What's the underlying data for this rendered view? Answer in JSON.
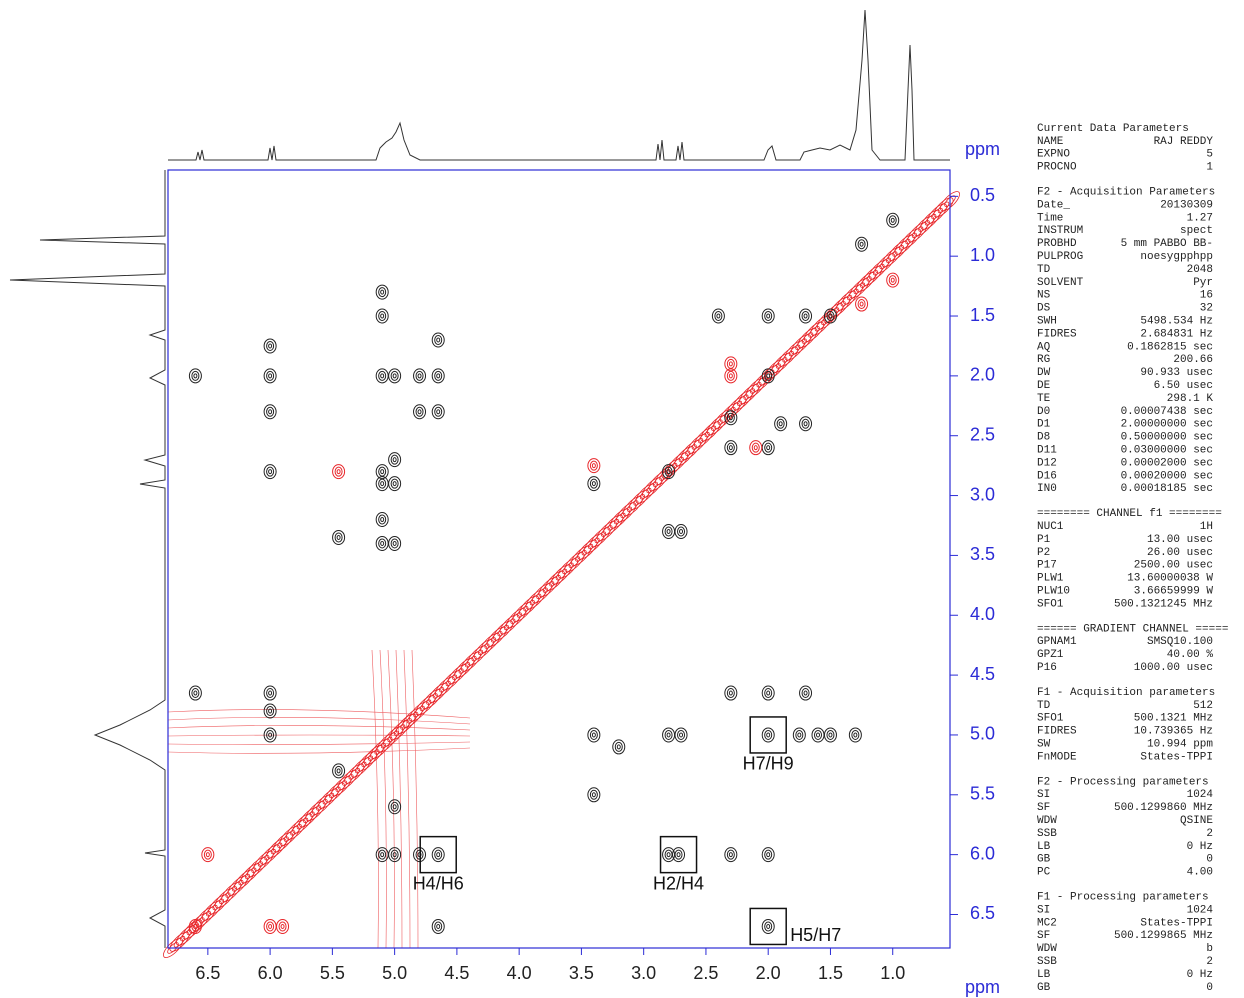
{
  "chart_data": {
    "type": "contour",
    "x_label": "ppm",
    "y_label": "ppm",
    "xlim": [
      6.82,
      0.54
    ],
    "ylim": [
      0.28,
      6.78
    ],
    "xticks": [
      6.5,
      {
        "value": 6,
        "label": "6.0"
      },
      5.5,
      {
        "value": 5,
        "label": "5.0"
      },
      4.5,
      {
        "value": 4,
        "label": "4.0"
      },
      3.5,
      {
        "value": 3,
        "label": "3.0"
      },
      2.5,
      {
        "value": 2,
        "label": "2.0"
      },
      1.5,
      {
        "value": 1,
        "label": "1.0"
      }
    ],
    "yticks": [
      0.5,
      {
        "value": 1,
        "label": "1.0"
      },
      1.5,
      {
        "value": 2,
        "label": "2.0"
      },
      2.5,
      {
        "value": 3,
        "label": "3.0"
      },
      3.5,
      {
        "value": 4,
        "label": "4.0"
      },
      4.5,
      {
        "value": 5,
        "label": "5.0"
      },
      5.5,
      {
        "value": 6,
        "label": "6.0"
      },
      6.5
    ],
    "axis_color": "#2b2bd6",
    "diagonal_color": "#e8262a",
    "cross_peaks": [
      {
        "x": 6.6,
        "y": 2.0,
        "color": "#222222"
      },
      {
        "x": 6.0,
        "y": 2.0,
        "color": "#222222"
      },
      {
        "x": 6.0,
        "y": 1.75,
        "color": "#222222"
      },
      {
        "x": 6.0,
        "y": 2.3,
        "color": "#222222"
      },
      {
        "x": 6.0,
        "y": 2.8,
        "color": "#222222"
      },
      {
        "x": 5.1,
        "y": 1.3,
        "color": "#222222"
      },
      {
        "x": 5.1,
        "y": 1.5,
        "color": "#222222"
      },
      {
        "x": 5.1,
        "y": 2.0,
        "color": "#222222"
      },
      {
        "x": 5.0,
        "y": 2.0,
        "color": "#222222"
      },
      {
        "x": 4.65,
        "y": 1.7,
        "color": "#222222"
      },
      {
        "x": 4.65,
        "y": 2.0,
        "color": "#222222"
      },
      {
        "x": 4.65,
        "y": 2.3,
        "color": "#222222"
      },
      {
        "x": 4.8,
        "y": 2.0,
        "color": "#222222"
      },
      {
        "x": 4.8,
        "y": 2.3,
        "color": "#222222"
      },
      {
        "x": 5.0,
        "y": 2.7,
        "color": "#222222"
      },
      {
        "x": 5.0,
        "y": 2.9,
        "color": "#222222"
      },
      {
        "x": 5.1,
        "y": 2.8,
        "color": "#222222"
      },
      {
        "x": 5.1,
        "y": 2.9,
        "color": "#222222"
      },
      {
        "x": 5.1,
        "y": 3.4,
        "color": "#222222"
      },
      {
        "x": 5.0,
        "y": 3.4,
        "color": "#222222"
      },
      {
        "x": 5.1,
        "y": 3.2,
        "color": "#222222"
      },
      {
        "x": 5.45,
        "y": 3.35,
        "color": "#222222"
      },
      {
        "x": 6.6,
        "y": 4.65,
        "color": "#222222"
      },
      {
        "x": 6.0,
        "y": 4.65,
        "color": "#222222"
      },
      {
        "x": 6.0,
        "y": 4.8,
        "color": "#222222"
      },
      {
        "x": 6.0,
        "y": 5.0,
        "color": "#222222"
      },
      {
        "x": 4.65,
        "y": 6.0,
        "color": "#222222"
      },
      {
        "x": 4.8,
        "y": 6.0,
        "color": "#222222"
      },
      {
        "x": 5.1,
        "y": 6.0,
        "color": "#222222"
      },
      {
        "x": 5.0,
        "y": 6.0,
        "color": "#222222"
      },
      {
        "x": 4.65,
        "y": 6.6,
        "color": "#222222"
      },
      {
        "x": 2.3,
        "y": 4.65,
        "color": "#222222"
      },
      {
        "x": 2.0,
        "y": 4.65,
        "color": "#222222"
      },
      {
        "x": 1.7,
        "y": 4.65,
        "color": "#222222"
      },
      {
        "x": 2.0,
        "y": 5.0,
        "color": "#222222"
      },
      {
        "x": 1.75,
        "y": 5.0,
        "color": "#222222"
      },
      {
        "x": 1.6,
        "y": 5.0,
        "color": "#222222"
      },
      {
        "x": 1.5,
        "y": 5.0,
        "color": "#222222"
      },
      {
        "x": 1.3,
        "y": 5.0,
        "color": "#222222"
      },
      {
        "x": 2.8,
        "y": 5.0,
        "color": "#222222"
      },
      {
        "x": 2.7,
        "y": 5.0,
        "color": "#222222"
      },
      {
        "x": 3.4,
        "y": 5.0,
        "color": "#222222"
      },
      {
        "x": 3.2,
        "y": 5.1,
        "color": "#222222"
      },
      {
        "x": 2.8,
        "y": 6.0,
        "color": "#222222"
      },
      {
        "x": 2.72,
        "y": 6.0,
        "color": "#222222"
      },
      {
        "x": 2.3,
        "y": 6.0,
        "color": "#222222"
      },
      {
        "x": 2.0,
        "y": 6.0,
        "color": "#222222"
      },
      {
        "x": 2.0,
        "y": 6.6,
        "color": "#222222"
      },
      {
        "x": 3.4,
        "y": 5.5,
        "color": "#222222"
      },
      {
        "x": 5.45,
        "y": 5.3,
        "color": "#222222"
      },
      {
        "x": 5.0,
        "y": 5.6,
        "color": "#222222"
      },
      {
        "x": 2.8,
        "y": 2.8,
        "color": "#222222"
      },
      {
        "x": 3.4,
        "y": 2.9,
        "color": "#222222"
      },
      {
        "x": 2.8,
        "y": 3.3,
        "color": "#222222"
      },
      {
        "x": 2.7,
        "y": 3.3,
        "color": "#222222"
      },
      {
        "x": 2.3,
        "y": 2.6,
        "color": "#222222"
      },
      {
        "x": 2.0,
        "y": 2.6,
        "color": "#222222"
      },
      {
        "x": 2.4,
        "y": 1.5,
        "color": "#222222"
      },
      {
        "x": 2.0,
        "y": 1.5,
        "color": "#222222"
      },
      {
        "x": 1.7,
        "y": 1.5,
        "color": "#222222"
      },
      {
        "x": 1.5,
        "y": 1.5,
        "color": "#222222"
      },
      {
        "x": 2.0,
        "y": 2.0,
        "color": "#222222"
      },
      {
        "x": 1.9,
        "y": 2.4,
        "color": "#222222"
      },
      {
        "x": 1.7,
        "y": 2.4,
        "color": "#222222"
      },
      {
        "x": 2.3,
        "y": 2.35,
        "color": "#222222"
      },
      {
        "x": 1.25,
        "y": 0.9,
        "color": "#222222"
      },
      {
        "x": 1.0,
        "y": 0.7,
        "color": "#222222"
      },
      {
        "x": 6.6,
        "y": 6.6,
        "color": "#e8262a"
      },
      {
        "x": 6.5,
        "y": 6.0,
        "color": "#e8262a"
      },
      {
        "x": 6.0,
        "y": 6.6,
        "color": "#e8262a"
      },
      {
        "x": 5.9,
        "y": 6.6,
        "color": "#e8262a"
      },
      {
        "x": 2.1,
        "y": 2.6,
        "color": "#e8262a"
      },
      {
        "x": 2.3,
        "y": 1.9,
        "color": "#e8262a"
      },
      {
        "x": 2.3,
        "y": 2.0,
        "color": "#e8262a"
      },
      {
        "x": 5.45,
        "y": 2.8,
        "color": "#e8262a"
      },
      {
        "x": 3.4,
        "y": 2.75,
        "color": "#e8262a"
      },
      {
        "x": 1.25,
        "y": 1.4,
        "color": "#e8262a"
      },
      {
        "x": 1.0,
        "y": 1.2,
        "color": "#e8262a"
      }
    ],
    "annotations": [
      {
        "label": "H4/H6",
        "x": 4.65,
        "y": 6.0,
        "label_side": "below"
      },
      {
        "label": "H2/H4",
        "x": 2.72,
        "y": 6.0,
        "label_side": "below"
      },
      {
        "label": "H7/H9",
        "x": 2.0,
        "y": 5.0,
        "label_side": "below"
      },
      {
        "label": "H5/H7",
        "x": 2.0,
        "y": 6.6,
        "label_side": "right"
      }
    ]
  },
  "parameters": [
    {
      "title": "Current Data Parameters",
      "rows": [
        [
          "NAME",
          "RAJ REDDY"
        ],
        [
          "EXPNO",
          "5"
        ],
        [
          "PROCNO",
          "1"
        ]
      ]
    },
    {
      "title": "F2 - Acquisition Parameters",
      "rows": [
        [
          "Date_",
          "20130309"
        ],
        [
          "Time",
          "1.27"
        ],
        [
          "INSTRUM",
          "spect"
        ],
        [
          "PROBHD",
          "5 mm PABBO BB-"
        ],
        [
          "PULPROG",
          "noesygpphpp"
        ],
        [
          "TD",
          "2048"
        ],
        [
          "SOLVENT",
          "Pyr"
        ],
        [
          "NS",
          "16"
        ],
        [
          "DS",
          "32"
        ],
        [
          "SWH",
          "5498.534 Hz"
        ],
        [
          "FIDRES",
          "2.684831 Hz"
        ],
        [
          "AQ",
          "0.1862815 sec"
        ],
        [
          "RG",
          "200.66"
        ],
        [
          "DW",
          "90.933 usec"
        ],
        [
          "DE",
          "6.50 usec"
        ],
        [
          "TE",
          "298.1 K"
        ],
        [
          "D0",
          "0.00007438 sec"
        ],
        [
          "D1",
          "2.00000000 sec"
        ],
        [
          "D8",
          "0.50000000 sec"
        ],
        [
          "D11",
          "0.03000000 sec"
        ],
        [
          "D12",
          "0.00002000 sec"
        ],
        [
          "D16",
          "0.00020000 sec"
        ],
        [
          "IN0",
          "0.00018185 sec"
        ]
      ]
    },
    {
      "title": "======== CHANNEL f1 ========",
      "rows": [
        [
          "NUC1",
          "1H"
        ],
        [
          "P1",
          "13.00 usec"
        ],
        [
          "P2",
          "26.00 usec"
        ],
        [
          "P17",
          "2500.00 usec"
        ],
        [
          "PLW1",
          "13.60000038 W"
        ],
        [
          "PLW10",
          "3.66659999 W"
        ],
        [
          "SFO1",
          "500.1321245 MHz"
        ]
      ]
    },
    {
      "title": "====== GRADIENT CHANNEL =====",
      "rows": [
        [
          "GPNAM1",
          "SMSQ10.100"
        ],
        [
          "GPZ1",
          "40.00 %"
        ],
        [
          "P16",
          "1000.00 usec"
        ]
      ]
    },
    {
      "title": "F1 - Acquisition parameters",
      "rows": [
        [
          "TD",
          "512"
        ],
        [
          "SFO1",
          "500.1321 MHz"
        ],
        [
          "FIDRES",
          "10.739365 Hz"
        ],
        [
          "SW",
          "10.994 ppm"
        ],
        [
          "FnMODE",
          "States-TPPI"
        ]
      ]
    },
    {
      "title": "F2 - Processing parameters",
      "rows": [
        [
          "SI",
          "1024"
        ],
        [
          "SF",
          "500.1299860 MHz"
        ],
        [
          "WDW",
          "QSINE"
        ],
        [
          "SSB",
          "2"
        ],
        [
          "LB",
          "0 Hz"
        ],
        [
          "GB",
          "0"
        ],
        [
          "PC",
          "4.00"
        ]
      ]
    },
    {
      "title": "F1 - Processing parameters",
      "rows": [
        [
          "SI",
          "1024"
        ],
        [
          "MC2",
          "States-TPPI"
        ],
        [
          "SF",
          "500.1299865 MHz"
        ],
        [
          "WDW",
          "b"
        ],
        [
          "SSB",
          "2"
        ],
        [
          "LB",
          "0 Hz"
        ],
        [
          "GB",
          "0"
        ]
      ]
    }
  ]
}
